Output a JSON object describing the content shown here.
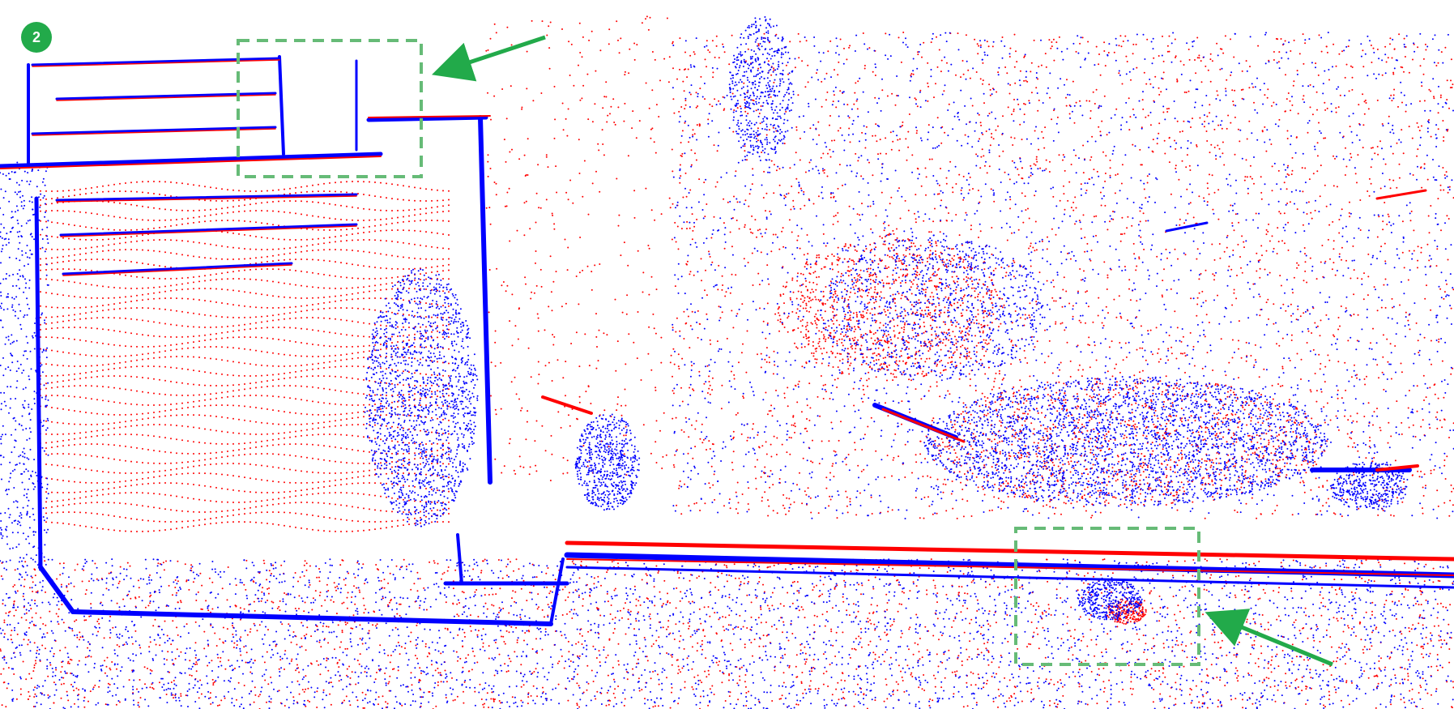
{
  "badge": {
    "label": "2"
  },
  "colors": {
    "source_cloud": "#ff0000",
    "target_cloud": "#0000ff",
    "highlight": "#22aa4a",
    "highlight_box": "#66bb77",
    "background": "#ffffff"
  },
  "highlights": [
    {
      "name": "upper-left-region"
    },
    {
      "name": "lower-right-region"
    }
  ]
}
